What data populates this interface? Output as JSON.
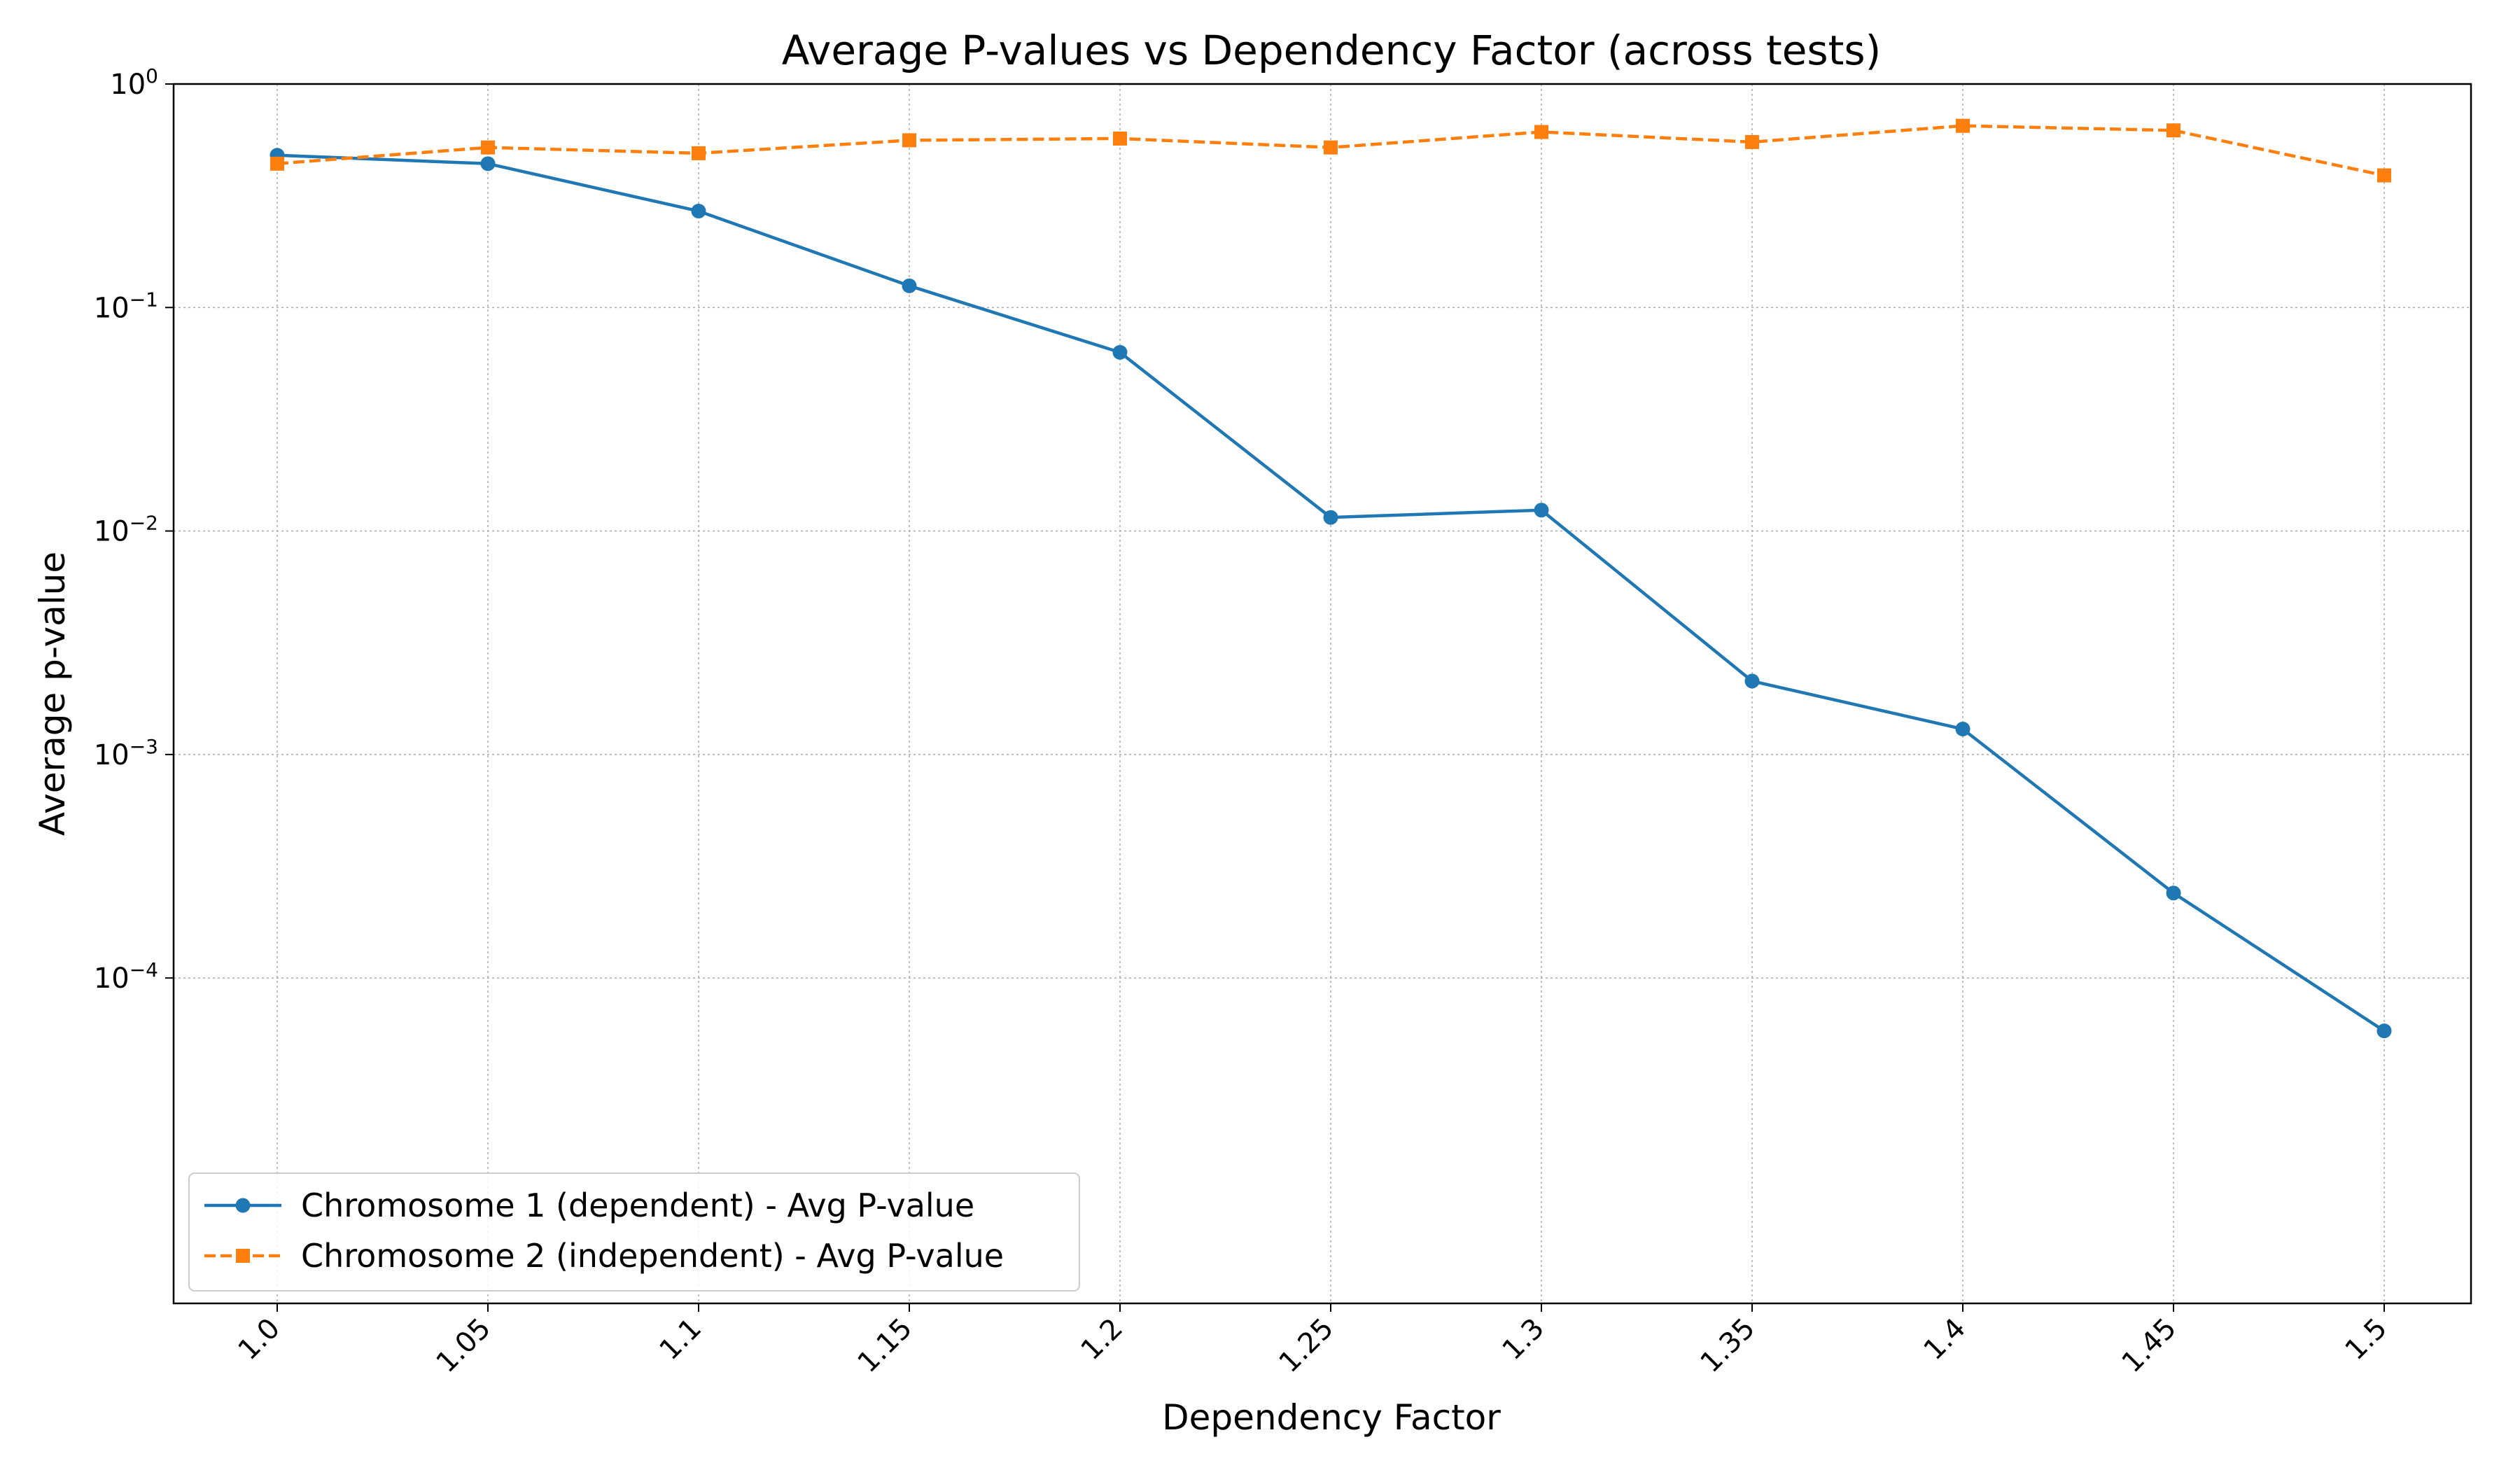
{
  "chart_data": {
    "type": "line",
    "title": "Average P-values vs Dependency Factor (across tests)",
    "xlabel": "Dependency Factor",
    "ylabel": "Average p-value",
    "x": [
      1.0,
      1.05,
      1.1,
      1.15,
      1.2,
      1.25,
      1.3,
      1.35,
      1.4,
      1.45,
      1.5
    ],
    "x_tick_labels": [
      "1.0",
      "1.05",
      "1.1",
      "1.15",
      "1.2",
      "1.25",
      "1.3",
      "1.35",
      "1.4",
      "1.45",
      "1.5"
    ],
    "y_scale": "log",
    "ylim": [
      3.5e-06,
      1
    ],
    "y_ticks": [
      {
        "value": 1,
        "base": "10",
        "exp": "0"
      },
      {
        "value": 0.1,
        "base": "10",
        "exp": "−1"
      },
      {
        "value": 0.01,
        "base": "10",
        "exp": "−2"
      },
      {
        "value": 0.001,
        "base": "10",
        "exp": "−3"
      },
      {
        "value": 0.0001,
        "base": "10",
        "exp": "−4"
      }
    ],
    "grid": true,
    "legend_position": "lower-left",
    "series": [
      {
        "name": "Chromosome 1 (dependent) - Avg P-value",
        "color": "#1f77b4",
        "marker": "circle",
        "line_style": "solid",
        "values": [
          0.48,
          0.44,
          0.27,
          0.125,
          0.063,
          0.0115,
          0.0124,
          0.00213,
          0.0013,
          0.00024,
          5.8e-05
        ]
      },
      {
        "name": "Chromosome 2 (independent) - Avg P-value",
        "color": "#ff7f0e",
        "marker": "square",
        "line_style": "dashed",
        "values": [
          0.44,
          0.52,
          0.49,
          0.56,
          0.57,
          0.52,
          0.61,
          0.55,
          0.65,
          0.62,
          0.39
        ]
      }
    ]
  }
}
